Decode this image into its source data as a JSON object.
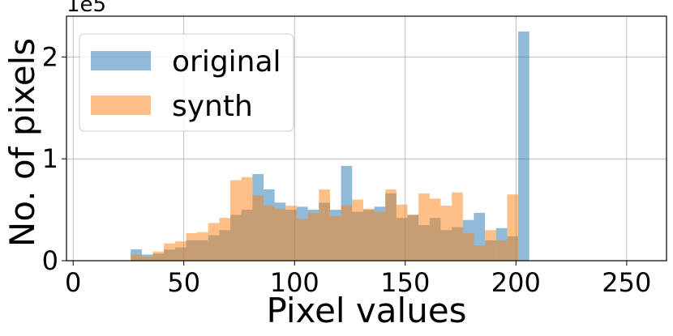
{
  "chart_data": {
    "type": "bar",
    "title": "",
    "xlabel": "Pixel values",
    "ylabel": "No. of pixels",
    "y_offset_label": "1e5",
    "xlim": [
      -3,
      268
    ],
    "ylim": [
      0,
      240000
    ],
    "x_ticks": [
      0,
      50,
      100,
      150,
      200,
      250
    ],
    "x_tick_labels": [
      "0",
      "50",
      "100",
      "150",
      "200",
      "250"
    ],
    "y_ticks": [
      0,
      100000,
      200000
    ],
    "y_tick_labels": [
      "0",
      "1",
      "2"
    ],
    "grid": true,
    "legend_position": "top-left",
    "bin_start": 26,
    "bin_width": 5,
    "series": [
      {
        "name": "original",
        "color": "#1f77b4",
        "values": [
          11000,
          6000,
          7000,
          11000,
          13000,
          20000,
          20000,
          25000,
          30000,
          45000,
          50000,
          85000,
          70000,
          57000,
          50000,
          53000,
          50000,
          57000,
          50000,
          93000,
          48000,
          50000,
          53000,
          66000,
          42000,
          45000,
          35000,
          42000,
          30000,
          33000,
          40000,
          47000,
          20000,
          32000,
          24000,
          225000
        ]
      },
      {
        "name": "synth",
        "color": "#ff7f0e",
        "values": [
          6000,
          4000,
          9000,
          17000,
          19000,
          27000,
          28000,
          37000,
          42000,
          79000,
          82000,
          64000,
          54000,
          51000,
          54000,
          41000,
          47000,
          70000,
          44000,
          54000,
          60000,
          51000,
          48000,
          70000,
          55000,
          45000,
          66000,
          61000,
          54000,
          67000,
          27000,
          15000,
          30000,
          20000,
          65000
        ]
      }
    ]
  }
}
